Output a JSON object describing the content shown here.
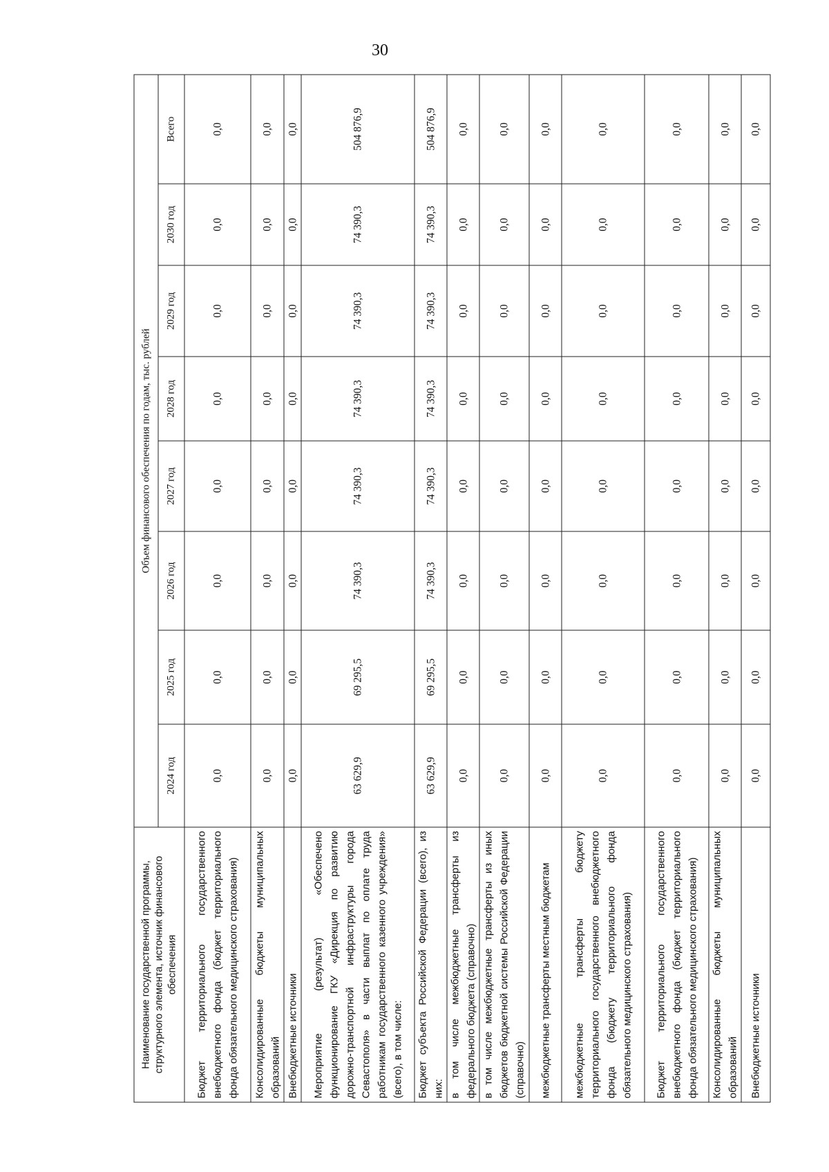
{
  "page_number": "30",
  "table": {
    "name_header": "Наименование государственной программы, структурного элемента, источник финансового обеспечения",
    "group_header": "Объем финансового обеспечения по годам, тыс. рублей",
    "columns": [
      "2024 год",
      "2025 год",
      "2026 год",
      "2027 год",
      "2028 год",
      "2029 год",
      "2030 год",
      "Всего"
    ],
    "rows": [
      {
        "label": "Бюджет территориального государственного внебюджетного фонда (бюджет территориального фонда обязательного медицинского страхования)",
        "values": [
          "0,0",
          "0,0",
          "0,0",
          "0,0",
          "0,0",
          "0,0",
          "0,0",
          "0,0"
        ]
      },
      {
        "label": "Консолидированные бюджеты муниципальных образований",
        "values": [
          "0,0",
          "0,0",
          "0,0",
          "0,0",
          "0,0",
          "0,0",
          "0,0",
          "0,0"
        ]
      },
      {
        "label": "Внебюджетные источники",
        "values": [
          "0,0",
          "0,0",
          "0,0",
          "0,0",
          "0,0",
          "0,0",
          "0,0",
          "0,0"
        ]
      },
      {
        "label": "Мероприятие (результат) «Обеспечено функционирование ГКУ «Дирекция по развитию дорожно-транспортной инфраструктуры города Севастополя» в части выплат по оплате труда работникам государственного казенного учреждения» (всего), в том числе:",
        "values": [
          "63 629,9",
          "69 295,5",
          "74 390,3",
          "74 390,3",
          "74 390,3",
          "74 390,3",
          "74 390,3",
          "504 876,9"
        ]
      },
      {
        "label": "Бюджет субъекта Российской Федерации (всего), из них:",
        "values": [
          "63 629,9",
          "69 295,5",
          "74 390,3",
          "74 390,3",
          "74 390,3",
          "74 390,3",
          "74 390,3",
          "504 876,9"
        ]
      },
      {
        "label": "в том числе межбюджетные трансферты из федерального бюджета (справочно)",
        "values": [
          "0,0",
          "0,0",
          "0,0",
          "0,0",
          "0,0",
          "0,0",
          "0,0",
          "0,0"
        ]
      },
      {
        "label": "в том числе межбюджетные трансферты из иных бюджетов бюджетной системы Российской Федерации (справочно)",
        "values": [
          "0,0",
          "0,0",
          "0,0",
          "0,0",
          "0,0",
          "0,0",
          "0,0",
          "0,0"
        ]
      },
      {
        "label": "межбюджетные трансферты местным бюджетам",
        "values": [
          "0,0",
          "0,0",
          "0,0",
          "0,0",
          "0,0",
          "0,0",
          "0,0",
          "0,0"
        ]
      },
      {
        "label": "межбюджетные трансферты бюджету территориального государственного внебюджетного фонда (бюджету территориального фонда обязательного медицинского страхования)",
        "values": [
          "0,0",
          "0,0",
          "0,0",
          "0,0",
          "0,0",
          "0,0",
          "0,0",
          "0,0"
        ]
      },
      {
        "label": "Бюджет территориального государственного внебюджетного фонда (бюджет территориального фонда обязательного медицинского страхования)",
        "values": [
          "0,0",
          "0,0",
          "0,0",
          "0,0",
          "0,0",
          "0,0",
          "0,0",
          "0,0"
        ]
      },
      {
        "label": "Консолидированные бюджеты муниципальных образований",
        "values": [
          "0,0",
          "0,0",
          "0,0",
          "0,0",
          "0,0",
          "0,0",
          "0,0",
          "0,0"
        ]
      },
      {
        "label": "Внебюджетные источники",
        "values": [
          "0,0",
          "0,0",
          "0,0",
          "0,0",
          "0,0",
          "0,0",
          "0,0",
          "0,0"
        ]
      }
    ]
  }
}
